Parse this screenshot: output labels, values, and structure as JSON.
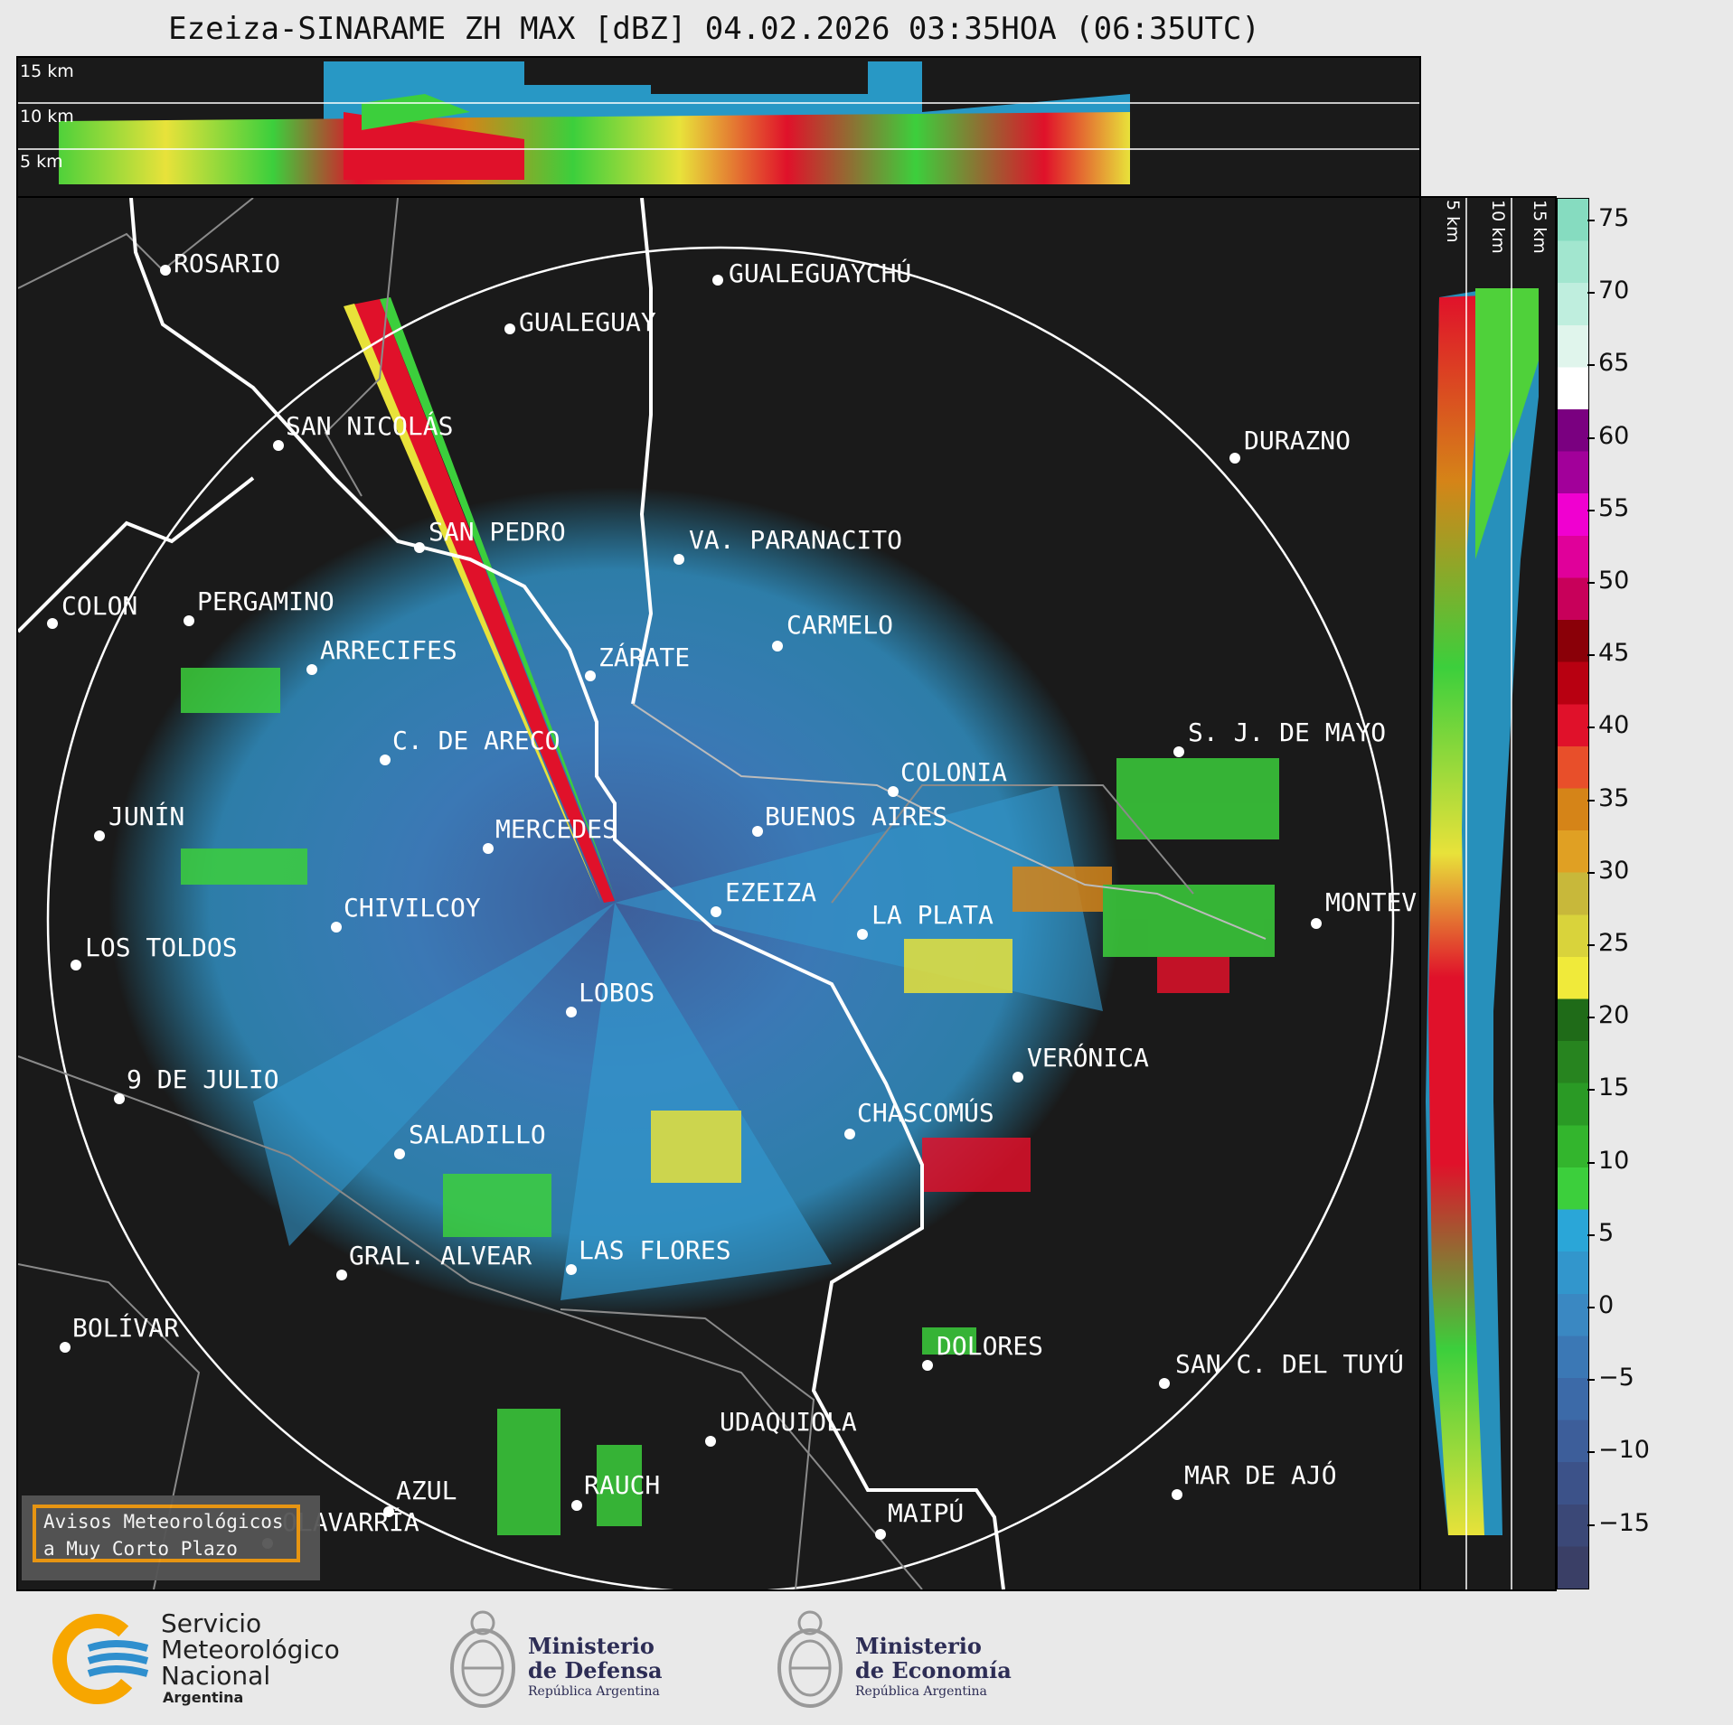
{
  "title": "Ezeiza-SINARAME ZH MAX [dBZ] 04.02.2026 03:35HOA (06:35UTC)",
  "top_panel": {
    "km_labels": [
      "15 km",
      "10 km",
      "5 km"
    ]
  },
  "side_panel": {
    "km_labels": [
      "5 km",
      "10 km",
      "15 km"
    ]
  },
  "colorbar": {
    "ticks": [
      "75",
      "70",
      "65",
      "60",
      "55",
      "50",
      "45",
      "40",
      "35",
      "30",
      "25",
      "20",
      "15",
      "10",
      "5",
      "0",
      "−5",
      "−10",
      "−15"
    ],
    "colors": [
      "#3a3f66",
      "#3b4877",
      "#3c5289",
      "#3d5e9a",
      "#3c6aa8",
      "#3b78b5",
      "#3a88c2",
      "#3296cc",
      "#2aa6d8",
      "#3ccf3c",
      "#33b52d",
      "#2a9a25",
      "#27841f",
      "#1f6b18",
      "#f0ea3a",
      "#d9d33b",
      "#c8b83a",
      "#e0a023",
      "#d58418",
      "#e84f2a",
      "#e0112a",
      "#b80011",
      "#8a0008",
      "#c8005a",
      "#e0009a",
      "#f000d0",
      "#a2009a",
      "#7a0080",
      "#ffffff",
      "#e0f5ec",
      "#bfeede",
      "#a2e6cf",
      "#86dcc0"
    ]
  },
  "cities": [
    {
      "name": "ROSARIO"
    },
    {
      "name": "GUALEGUAYCHÚ"
    },
    {
      "name": "GUALEGUAY"
    },
    {
      "name": "SAN NICOLÁS"
    },
    {
      "name": "DURAZNO"
    },
    {
      "name": "SAN PEDRO"
    },
    {
      "name": "VA. PARANACITO"
    },
    {
      "name": "COLON"
    },
    {
      "name": "PERGAMINO"
    },
    {
      "name": "CARMELO"
    },
    {
      "name": "ARRECIFES"
    },
    {
      "name": "ZÁRATE"
    },
    {
      "name": "S. J. DE MAYO"
    },
    {
      "name": "C. DE ARECO"
    },
    {
      "name": "COLONIA"
    },
    {
      "name": "JUNÍN"
    },
    {
      "name": "BUENOS AIRES"
    },
    {
      "name": "MERCEDES"
    },
    {
      "name": "EZEIZA"
    },
    {
      "name": "MONTEVIDEO"
    },
    {
      "name": "CHIVILCOY"
    },
    {
      "name": "LA PLATA"
    },
    {
      "name": "LOS TOLDOS"
    },
    {
      "name": "LOBOS"
    },
    {
      "name": "VERÓNICA"
    },
    {
      "name": "9 DE JULIO"
    },
    {
      "name": "CHASCOMÚS"
    },
    {
      "name": "SALADILLO"
    },
    {
      "name": "GRAL. ALVEAR"
    },
    {
      "name": "LAS FLORES"
    },
    {
      "name": "BOLÍVAR"
    },
    {
      "name": "DOLORES"
    },
    {
      "name": "SAN C. DEL TUYÚ"
    },
    {
      "name": "UDAQUIOLA"
    },
    {
      "name": "MAR DE AJÓ"
    },
    {
      "name": "AZUL"
    },
    {
      "name": "RAUCH"
    },
    {
      "name": "OLAVARRÍA"
    },
    {
      "name": "MAIPÚ"
    }
  ],
  "warning_button": {
    "line1": "Avisos Meteorológicos",
    "line2": "a Muy Corto Plazo"
  },
  "logos": {
    "smn": {
      "line1": "Servicio",
      "line2": "Meteorológico",
      "line3": "Nacional",
      "line4": "Argentina",
      "color_yellow": "#f7a600",
      "color_blue": "#2f8fce"
    },
    "defensa": {
      "line1": "Ministerio",
      "line2": "de Defensa",
      "line3": "República Argentina"
    },
    "economia": {
      "line1": "Ministerio",
      "line2": "de Economía",
      "line3": "República Argentina"
    }
  }
}
